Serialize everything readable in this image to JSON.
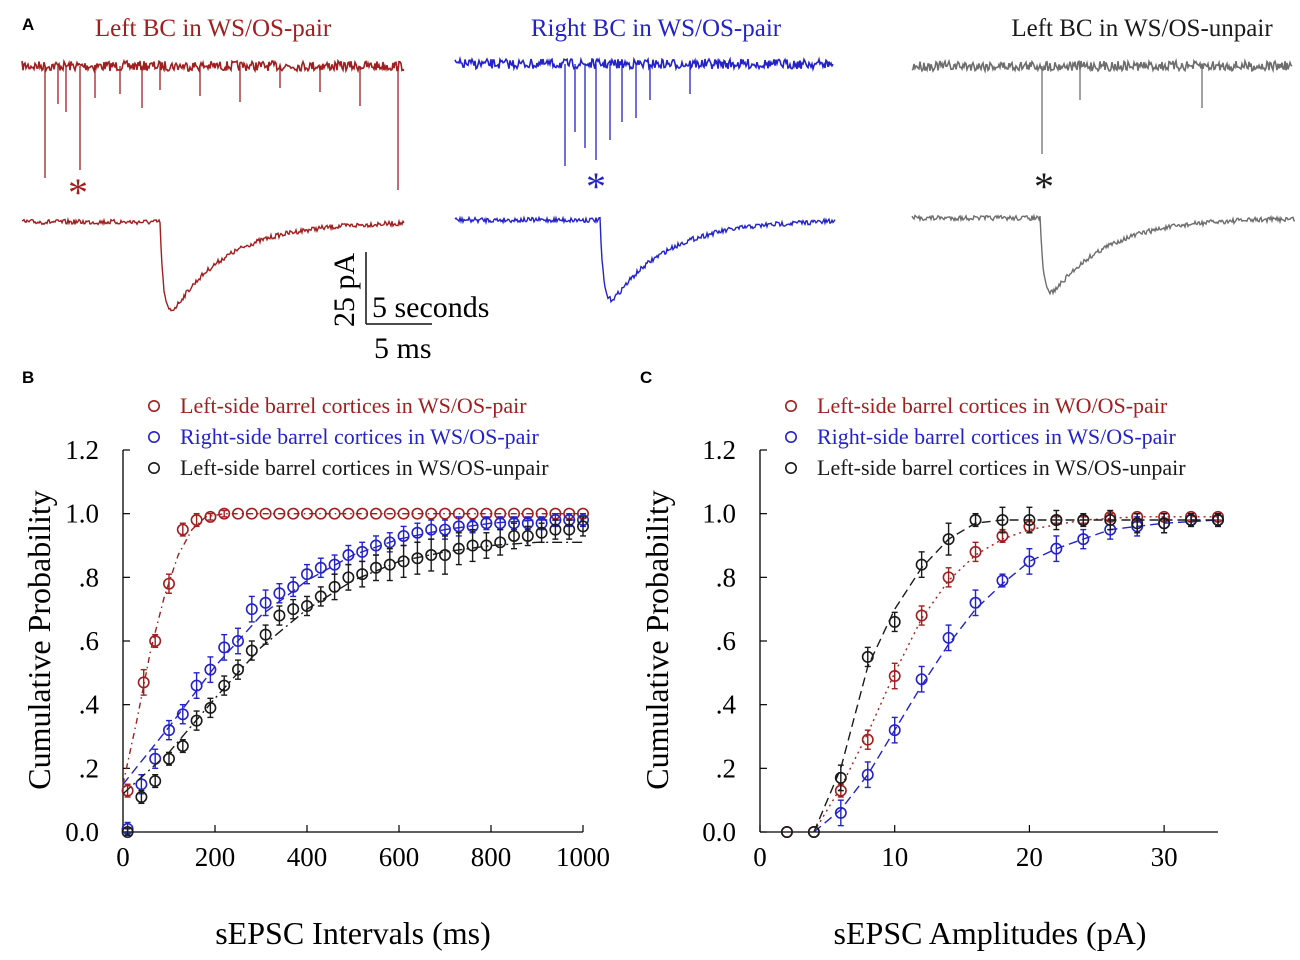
{
  "colors": {
    "red": "#a01f1f",
    "blue": "#2323c8",
    "black": "#1a1a1a",
    "grey": "#6e6e6e"
  },
  "panel_a": {
    "label": "A",
    "traces": [
      {
        "title": "Left BC in WS/OS-pair",
        "marker": "*",
        "color": "red"
      },
      {
        "title": "Right BC in WS/OS-pair",
        "marker": "*",
        "color": "blue"
      },
      {
        "title": "Left BC in WS/OS-unpair",
        "marker": "*",
        "color": "black"
      }
    ],
    "scale_amplitude": "25 pA",
    "scale_time_long": "5 seconds",
    "scale_time_short": "5 ms"
  },
  "chart_data": [
    {
      "panel": "B",
      "type": "scatter",
      "title": "",
      "xlabel": "sEPSC Intervals (ms)",
      "ylabel": "Cumulative Probability",
      "xlim": [
        0,
        1000
      ],
      "ylim": [
        0,
        1.2
      ],
      "xticks": [
        "0",
        "200",
        "400",
        "600",
        "800",
        "1000"
      ],
      "yticks": [
        "0.0",
        ".2",
        ".4",
        ".6",
        ".8",
        "1.0",
        "1.2"
      ],
      "legend_position": "top",
      "series": [
        {
          "name": "Left-side barrel cortices in WS/OS-pair",
          "color": "red",
          "x": [
            10,
            45,
            70,
            100,
            130,
            160,
            190,
            220,
            250,
            280,
            310,
            340,
            370,
            400,
            430,
            460,
            490,
            520,
            550,
            580,
            610,
            640,
            670,
            700,
            730,
            760,
            790,
            820,
            850,
            880,
            910,
            940,
            970,
            1000
          ],
          "y": [
            0.13,
            0.47,
            0.6,
            0.78,
            0.95,
            0.98,
            0.99,
            1.0,
            1.0,
            1.0,
            1.0,
            1.0,
            1.0,
            1.0,
            1.0,
            1.0,
            1.0,
            1.0,
            1.0,
            1.0,
            1.0,
            1.0,
            1.0,
            1.0,
            1.0,
            1.0,
            1.0,
            1.0,
            1.0,
            1.0,
            1.0,
            1.0,
            1.0,
            1.0
          ],
          "err": [
            0.02,
            0.04,
            0.02,
            0.03,
            0.02,
            0.02,
            0.01,
            0.01,
            0,
            0,
            0,
            0,
            0,
            0,
            0,
            0,
            0,
            0,
            0,
            0,
            0,
            0,
            0,
            0,
            0,
            0,
            0,
            0,
            0,
            0,
            0,
            0,
            0,
            0
          ],
          "fit_x": [
            0,
            30,
            60,
            90,
            120,
            150,
            180,
            220,
            300,
            1000
          ],
          "fit_y": [
            0.15,
            0.35,
            0.57,
            0.74,
            0.87,
            0.95,
            0.99,
            1.0,
            1.0,
            1.0
          ]
        },
        {
          "name": "Right-side barrel cortices in WS/OS-pair",
          "color": "blue",
          "x": [
            10,
            40,
            70,
            100,
            130,
            160,
            190,
            220,
            250,
            280,
            310,
            340,
            370,
            400,
            430,
            460,
            490,
            520,
            550,
            580,
            610,
            640,
            670,
            700,
            730,
            760,
            790,
            820,
            850,
            880,
            910,
            940,
            970,
            1000
          ],
          "y": [
            0.01,
            0.15,
            0.23,
            0.32,
            0.37,
            0.46,
            0.51,
            0.58,
            0.6,
            0.7,
            0.72,
            0.75,
            0.77,
            0.81,
            0.83,
            0.84,
            0.87,
            0.88,
            0.9,
            0.91,
            0.93,
            0.94,
            0.95,
            0.95,
            0.96,
            0.96,
            0.97,
            0.97,
            0.97,
            0.97,
            0.97,
            0.98,
            0.98,
            0.98
          ],
          "err": [
            0.02,
            0.03,
            0.03,
            0.03,
            0.03,
            0.04,
            0.04,
            0.04,
            0.04,
            0.04,
            0.04,
            0.03,
            0.03,
            0.03,
            0.03,
            0.03,
            0.03,
            0.03,
            0.03,
            0.03,
            0.03,
            0.03,
            0.03,
            0.03,
            0.03,
            0.02,
            0.02,
            0.02,
            0.02,
            0.02,
            0.02,
            0.02,
            0.02,
            0.02
          ],
          "fit_x": [
            0,
            100,
            200,
            300,
            400,
            500,
            600,
            700,
            800,
            900,
            1000
          ],
          "fit_y": [
            0.15,
            0.33,
            0.52,
            0.68,
            0.79,
            0.87,
            0.92,
            0.95,
            0.97,
            0.98,
            0.98
          ]
        },
        {
          "name": "Left-side barrel cortices in WS/OS-unpair",
          "color": "black",
          "x": [
            10,
            40,
            70,
            100,
            130,
            160,
            190,
            220,
            250,
            280,
            310,
            340,
            370,
            400,
            430,
            460,
            490,
            520,
            550,
            580,
            610,
            640,
            670,
            700,
            730,
            760,
            790,
            820,
            850,
            880,
            910,
            940,
            970,
            1000
          ],
          "y": [
            0.0,
            0.11,
            0.16,
            0.23,
            0.27,
            0.35,
            0.39,
            0.46,
            0.51,
            0.57,
            0.62,
            0.68,
            0.7,
            0.71,
            0.74,
            0.77,
            0.8,
            0.81,
            0.83,
            0.84,
            0.85,
            0.86,
            0.87,
            0.87,
            0.89,
            0.9,
            0.9,
            0.91,
            0.93,
            0.93,
            0.94,
            0.95,
            0.95,
            0.96
          ],
          "err": [
            0.01,
            0.02,
            0.02,
            0.02,
            0.02,
            0.03,
            0.03,
            0.03,
            0.03,
            0.03,
            0.03,
            0.03,
            0.03,
            0.03,
            0.03,
            0.04,
            0.04,
            0.04,
            0.04,
            0.05,
            0.05,
            0.05,
            0.05,
            0.06,
            0.05,
            0.05,
            0.04,
            0.04,
            0.04,
            0.03,
            0.03,
            0.03,
            0.03,
            0.03
          ],
          "fit_x": [
            0,
            100,
            200,
            300,
            400,
            500,
            600,
            700,
            800,
            900,
            1000
          ],
          "fit_y": [
            0.12,
            0.25,
            0.42,
            0.58,
            0.7,
            0.79,
            0.85,
            0.88,
            0.9,
            0.91,
            0.91
          ]
        }
      ]
    },
    {
      "panel": "C",
      "type": "scatter",
      "title": "",
      "xlabel": "sEPSC Amplitudes (pA)",
      "ylabel": "Cumulative Probability",
      "xlim": [
        0,
        34
      ],
      "ylim": [
        0,
        1.2
      ],
      "xticks": [
        "0",
        "10",
        "20",
        "30"
      ],
      "yticks": [
        "0.0",
        ".2",
        ".4",
        ".6",
        ".8",
        "1.0",
        "1.2"
      ],
      "legend_position": "top",
      "series": [
        {
          "name": "Left-side barrel cortices in WO/OS-pair",
          "color": "red",
          "x": [
            2,
            4,
            6,
            8,
            10,
            12,
            14,
            16,
            18,
            20,
            22,
            24,
            26,
            28,
            30,
            32,
            34
          ],
          "y": [
            0.0,
            0.0,
            0.13,
            0.29,
            0.49,
            0.68,
            0.8,
            0.88,
            0.93,
            0.96,
            0.98,
            0.98,
            0.99,
            0.99,
            0.99,
            0.99,
            0.99
          ],
          "err": [
            0,
            0,
            0.02,
            0.03,
            0.04,
            0.03,
            0.03,
            0.03,
            0.02,
            0.02,
            0.01,
            0.01,
            0.01,
            0.01,
            0.01,
            0.01,
            0.01
          ],
          "fit_x": [
            4,
            6,
            8,
            10,
            12,
            14,
            16,
            18,
            20,
            24,
            28,
            34
          ],
          "fit_y": [
            0.0,
            0.14,
            0.31,
            0.5,
            0.67,
            0.79,
            0.87,
            0.92,
            0.95,
            0.98,
            0.99,
            0.99
          ]
        },
        {
          "name": "Right-side barrel cortices in WS/OS-pair",
          "color": "blue",
          "x": [
            6,
            8,
            10,
            12,
            14,
            16,
            18,
            20,
            22,
            24,
            26,
            28,
            30,
            32,
            34
          ],
          "y": [
            0.06,
            0.18,
            0.32,
            0.48,
            0.61,
            0.72,
            0.79,
            0.85,
            0.89,
            0.92,
            0.95,
            0.96,
            0.97,
            0.98,
            0.98
          ],
          "err": [
            0.04,
            0.04,
            0.04,
            0.04,
            0.04,
            0.04,
            0.02,
            0.04,
            0.04,
            0.03,
            0.03,
            0.03,
            0.03,
            0.02,
            0.02
          ],
          "fit_x": [
            4,
            6,
            8,
            10,
            12,
            14,
            16,
            18,
            20,
            22,
            24,
            26,
            30,
            34
          ],
          "fit_y": [
            0.0,
            0.07,
            0.18,
            0.32,
            0.46,
            0.59,
            0.7,
            0.78,
            0.85,
            0.89,
            0.92,
            0.95,
            0.97,
            0.98
          ]
        },
        {
          "name": "Left-side barrel cortices in WS/OS-unpair",
          "color": "black",
          "x": [
            2,
            4,
            6,
            8,
            10,
            12,
            14,
            16,
            18,
            20,
            22,
            24,
            26,
            28,
            30,
            32,
            34
          ],
          "y": [
            0.0,
            0.0,
            0.17,
            0.55,
            0.66,
            0.84,
            0.92,
            0.98,
            0.98,
            0.98,
            0.98,
            0.98,
            0.98,
            0.97,
            0.97,
            0.98,
            0.98
          ],
          "err": [
            0,
            0,
            0.04,
            0.03,
            0.03,
            0.04,
            0.05,
            0.02,
            0.04,
            0.04,
            0.03,
            0.02,
            0.03,
            0.03,
            0.03,
            0.02,
            0.02
          ],
          "fit_x": [
            4,
            6,
            8,
            10,
            12,
            14,
            16,
            18,
            22,
            26,
            30,
            34
          ],
          "fit_y": [
            0.0,
            0.2,
            0.52,
            0.7,
            0.83,
            0.92,
            0.97,
            0.98,
            0.98,
            0.98,
            0.98,
            0.98
          ]
        }
      ]
    }
  ]
}
